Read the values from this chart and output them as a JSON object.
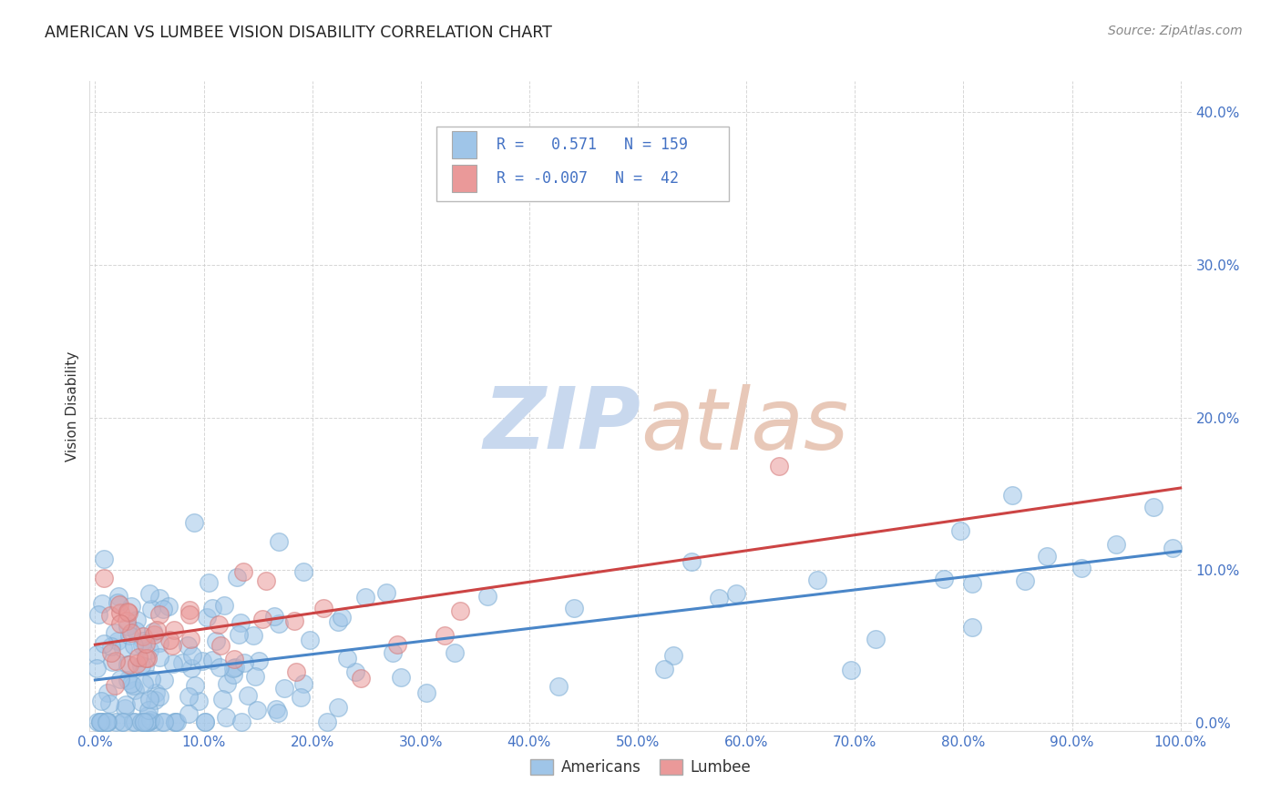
{
  "title": "AMERICAN VS LUMBEE VISION DISABILITY CORRELATION CHART",
  "source_text": "Source: ZipAtlas.com",
  "ylabel": "Vision Disability",
  "legend_labels": [
    "Americans",
    "Lumbee"
  ],
  "r_american": 0.571,
  "n_american": 159,
  "r_lumbee": -0.007,
  "n_lumbee": 42,
  "xlim": [
    -0.005,
    1.01
  ],
  "ylim": [
    -0.005,
    0.42
  ],
  "yticks": [
    0.0,
    0.1,
    0.2,
    0.3,
    0.4
  ],
  "xticks": [
    0.0,
    0.1,
    0.2,
    0.3,
    0.4,
    0.5,
    0.6,
    0.7,
    0.8,
    0.9,
    1.0
  ],
  "blue_color": "#9fc5e8",
  "pink_color": "#ea9999",
  "blue_line_color": "#4a86c8",
  "pink_line_color": "#cc4444",
  "title_color": "#222222",
  "watermark_color": "#dce6f1",
  "grid_color": "#cccccc",
  "tick_color": "#4472c4",
  "axis_label_color": "#333333",
  "source_color": "#888888"
}
